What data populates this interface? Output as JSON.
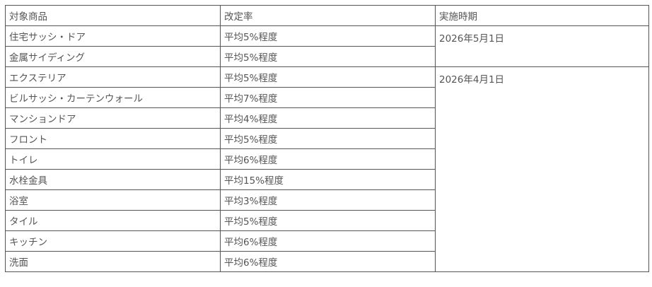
{
  "table": {
    "headers": [
      "対象商品",
      "改定率",
      "実施時期"
    ],
    "rows": [
      {
        "product": "住宅サッシ・ドア",
        "rate": "平均5%程度"
      },
      {
        "product": "金属サイディング",
        "rate": "平均5%程度"
      },
      {
        "product": "エクステリア",
        "rate": "平均5%程度"
      },
      {
        "product": "ビルサッシ・カーテンウォール",
        "rate": "平均7%程度"
      },
      {
        "product": "マンションドア",
        "rate": "平均4%程度"
      },
      {
        "product": "フロント",
        "rate": "平均5%程度"
      },
      {
        "product": "トイレ",
        "rate": "平均6%程度"
      },
      {
        "product": "水栓金具",
        "rate": "平均15%程度"
      },
      {
        "product": "浴室",
        "rate": "平均3%程度"
      },
      {
        "product": "タイル",
        "rate": "平均5%程度"
      },
      {
        "product": "キッチン",
        "rate": "平均6%程度"
      },
      {
        "product": "洗面",
        "rate": "平均6%程度"
      }
    ],
    "dates": [
      "2026年5月1日",
      "2026年4月1日"
    ]
  }
}
